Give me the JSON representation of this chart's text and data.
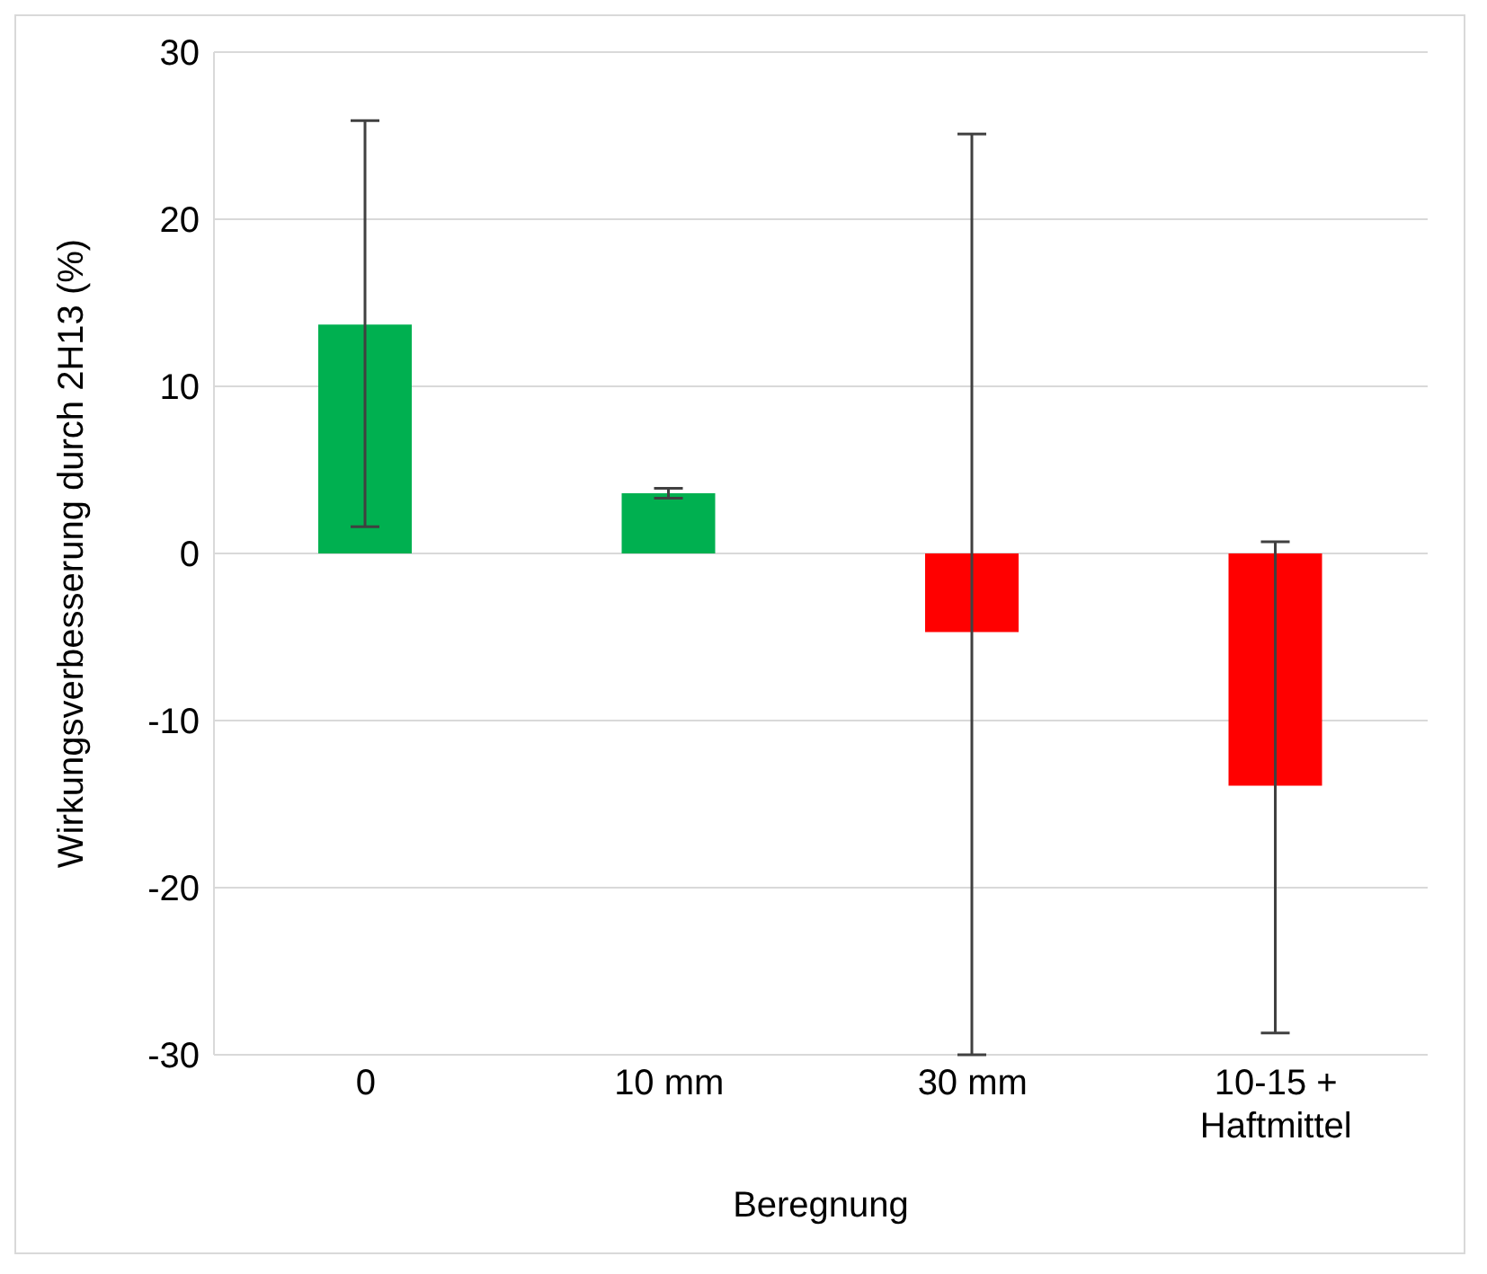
{
  "chart_data": {
    "type": "bar",
    "xlabel": "Beregnung",
    "ylabel": "Wirkungsverbesserung durch 2H13 (%)",
    "categories": [
      "0",
      "10 mm",
      "30 mm",
      "10-15 + Haftmittel"
    ],
    "values": [
      13.7,
      3.6,
      -4.7,
      -13.9
    ],
    "colors": [
      "#00b050",
      "#00b050",
      "#ff0000",
      "#ff0000"
    ],
    "errors": [
      [
        1.6,
        25.9
      ],
      [
        3.3,
        3.9
      ],
      [
        -30,
        25.1
      ],
      [
        -28.7,
        0.7
      ]
    ],
    "ylim": [
      -30,
      30
    ],
    "yticks": [
      -30,
      -20,
      -10,
      0,
      10,
      20,
      30
    ],
    "grid": "y"
  }
}
